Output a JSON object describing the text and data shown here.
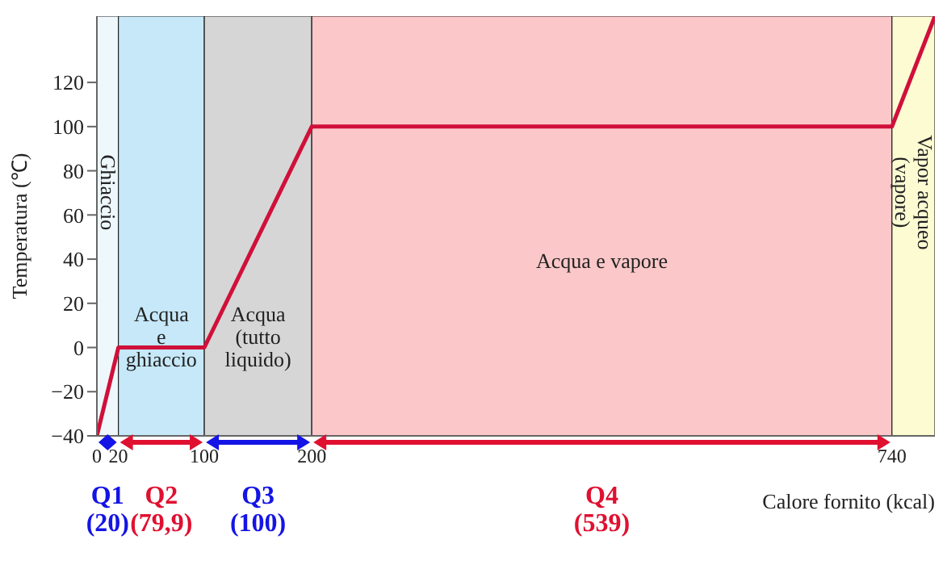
{
  "chart_data": {
    "type": "line",
    "xlabel": "Calore fornito (kcal)",
    "ylabel": "Temperatura (℃)",
    "x": [
      0,
      20,
      100,
      200,
      740,
      780
    ],
    "series": [
      {
        "color": "#d0103a",
        "values": [
          -40,
          0,
          0,
          100,
          100,
          150
        ]
      }
    ],
    "xlim": [
      0,
      780
    ],
    "xticks": [
      0,
      20,
      100,
      200,
      740
    ],
    "ylim": [
      -40,
      150
    ],
    "yticks": [
      -40,
      -20,
      0,
      20,
      40,
      60,
      80,
      100,
      120
    ],
    "grid": false,
    "legend": false,
    "marker": "none",
    "line_style": "solid",
    "bands": [
      {
        "axis": "x",
        "from": 0,
        "to": 20,
        "label": "Ghiaccio",
        "color": "#eef7fc"
      },
      {
        "axis": "x",
        "from": 20,
        "to": 100,
        "label": "Acqua e ghiaccio",
        "color": "#c6e8f8"
      },
      {
        "axis": "x",
        "from": 100,
        "to": 200,
        "label": "Acqua (tutto liquido)",
        "color": "#d6d6d6"
      },
      {
        "axis": "x",
        "from": 200,
        "to": 740,
        "label": "Acqua e vapore",
        "color": "#fcc7c9"
      },
      {
        "axis": "x",
        "from": 740,
        "to": 780,
        "label": "Vapor acqueo (vapore)",
        "color": "#fdfbd2"
      }
    ],
    "annotations": [
      "Q1 (20)",
      "Q2 (79,9)",
      "Q3 (100)",
      "Q4 (539)"
    ]
  }
}
